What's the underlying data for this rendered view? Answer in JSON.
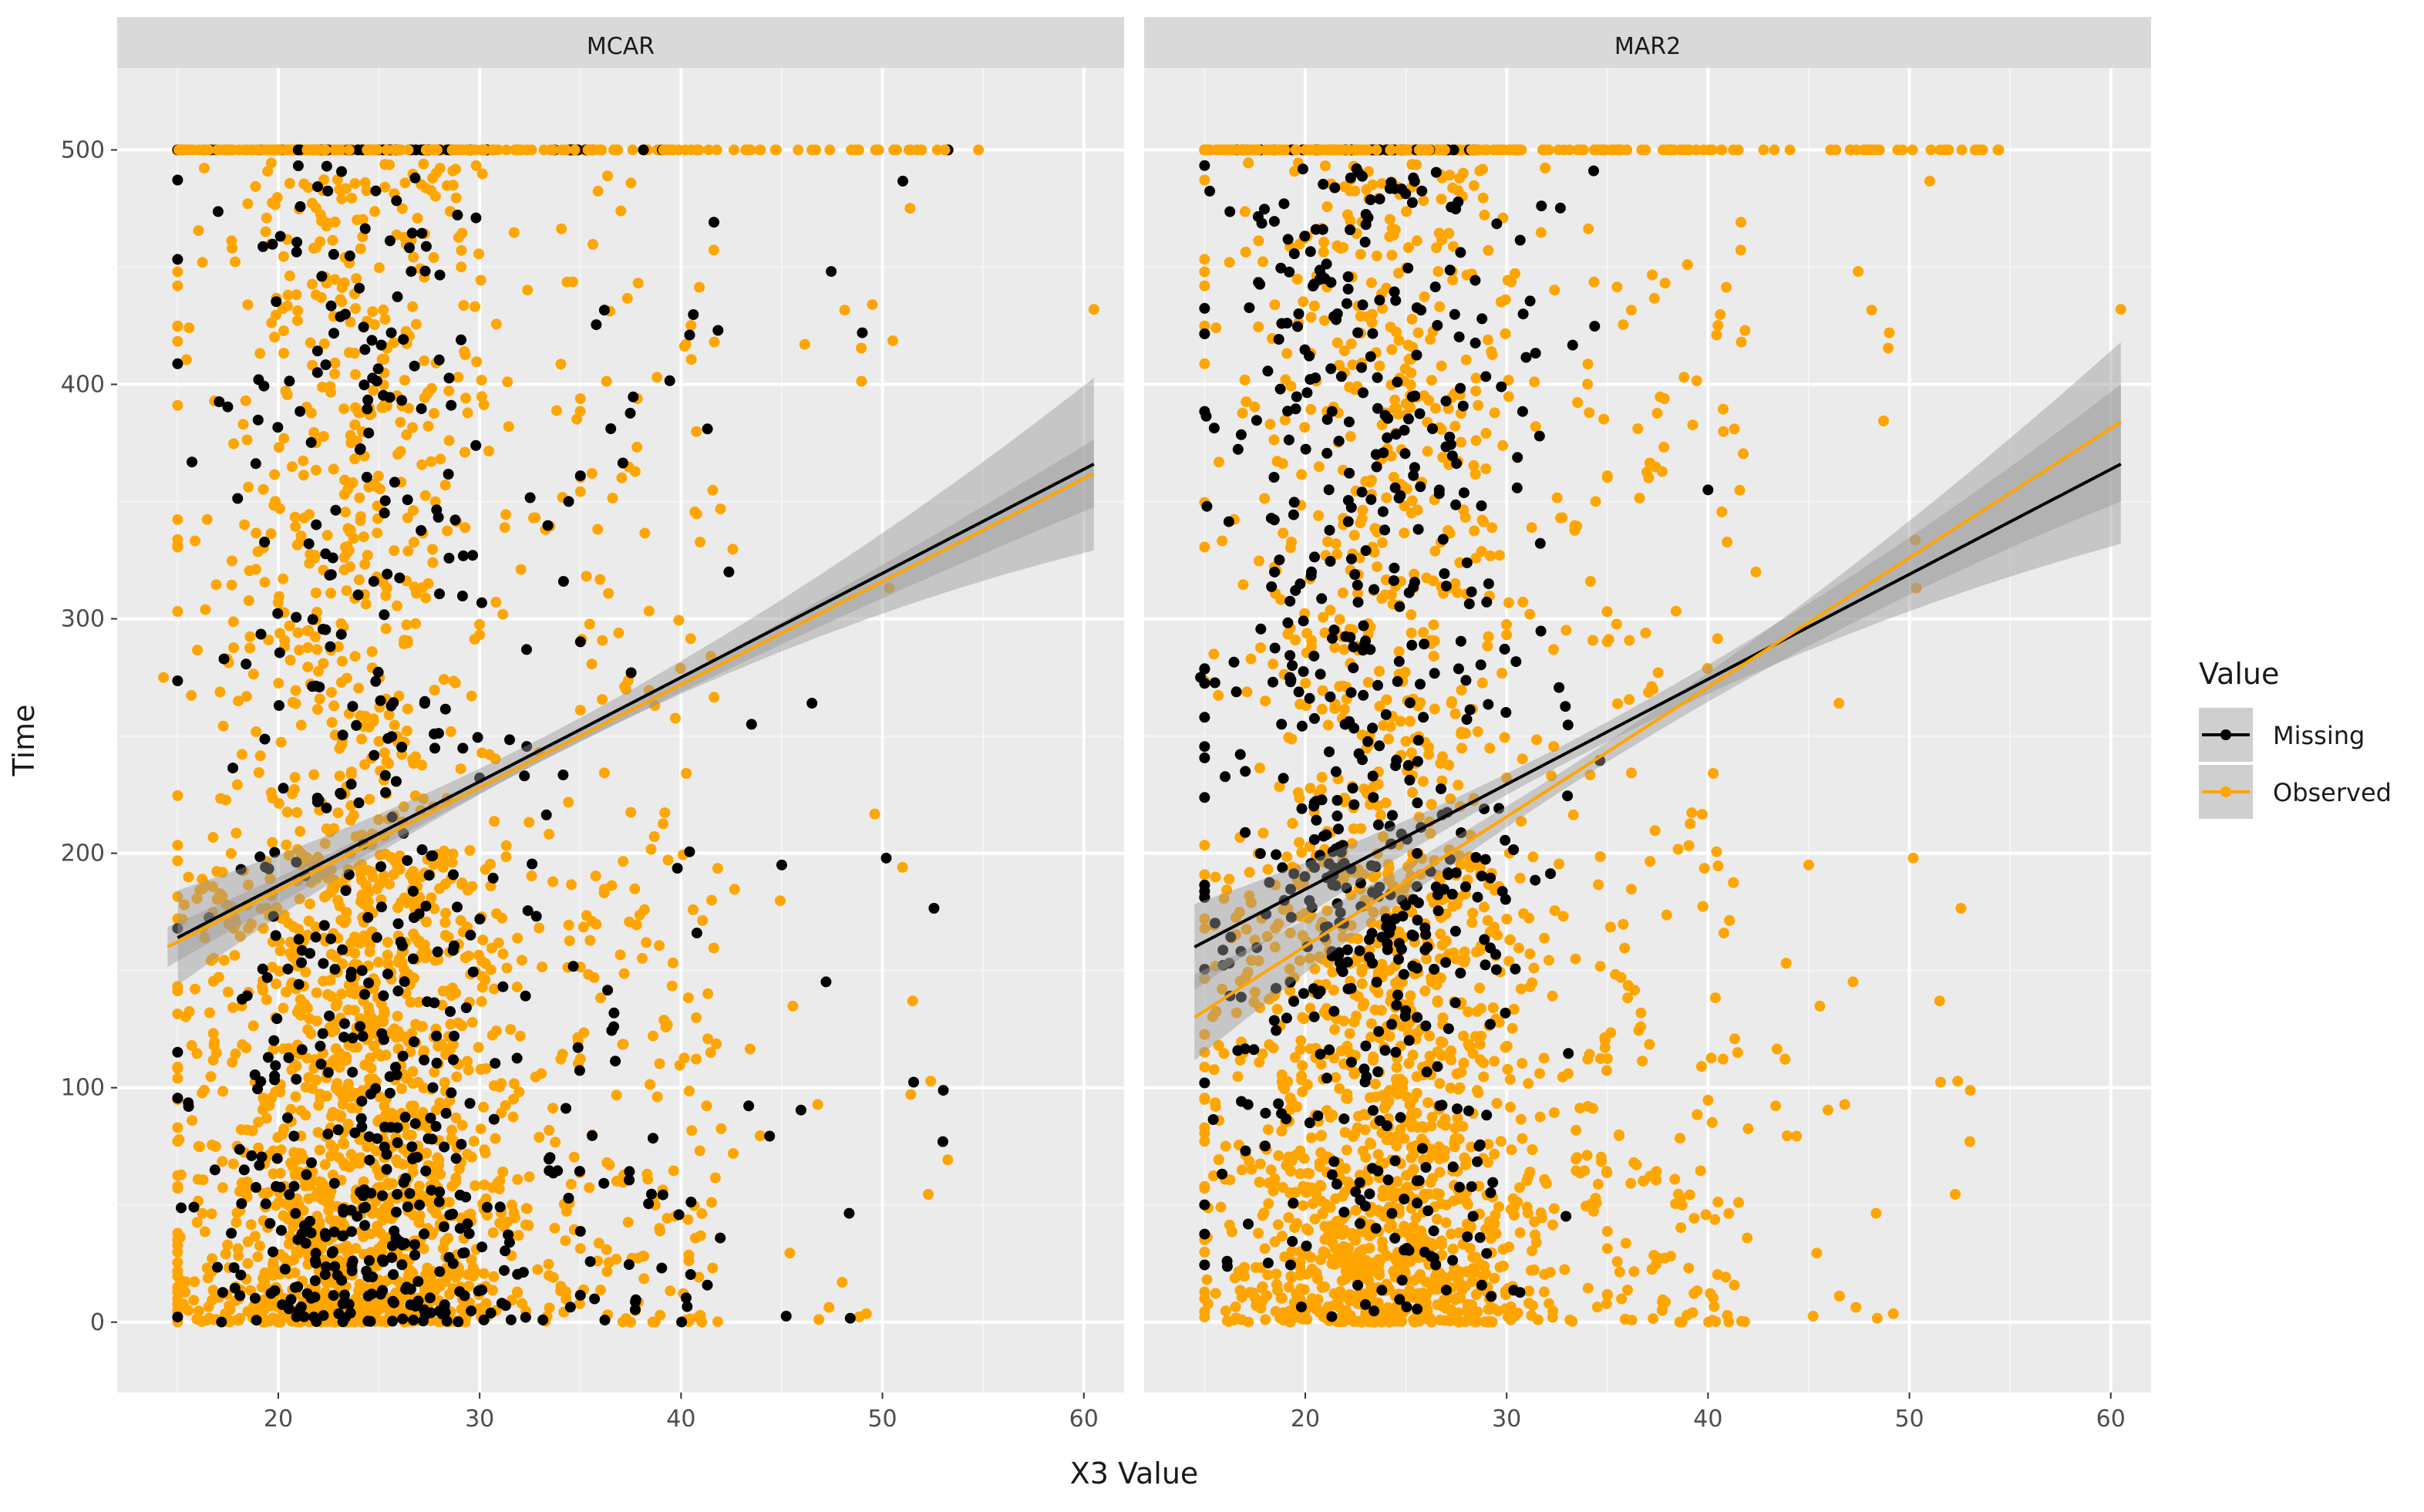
{
  "chart_data": {
    "type": "scatter",
    "subtype": "faceted scatter with linear fits and confidence bands",
    "xlabel": "X3 Value",
    "ylabel": "Time",
    "xlim": [
      12,
      62
    ],
    "ylim": [
      -30,
      535
    ],
    "x_ticks": [
      20,
      30,
      40,
      50,
      60
    ],
    "y_ticks": [
      0,
      100,
      200,
      300,
      400,
      500
    ],
    "grid": true,
    "legend": {
      "title": "Value",
      "position": "right",
      "entries": [
        {
          "label": "Missing",
          "color": "#000000"
        },
        {
          "label": "Observed",
          "color": "#FFA500"
        }
      ]
    },
    "facets": [
      {
        "label": "MCAR",
        "fits": [
          {
            "series": "Missing",
            "x": [
              15,
              60.5
            ],
            "y": [
              164,
              366
            ],
            "band_half_width": [
              12,
              32
            ]
          },
          {
            "series": "Observed",
            "x": [
              14.5,
              60.5
            ],
            "y": [
              160,
              362
            ],
            "band_half_width": [
              6,
              12
            ]
          }
        ],
        "notable_points": [
          {
            "series": "Missing",
            "x": 49,
            "y": 422
          },
          {
            "series": "Missing",
            "x": 53,
            "y": 77
          },
          {
            "series": "Missing",
            "x": 45,
            "y": 195
          },
          {
            "series": "Missing",
            "x": 46.5,
            "y": 264
          },
          {
            "series": "Missing",
            "x": 43.5,
            "y": 255
          },
          {
            "series": "Observed",
            "x": 60.5,
            "y": 432
          },
          {
            "series": "Observed",
            "x": 51.5,
            "y": 137
          },
          {
            "series": "Observed",
            "x": 51,
            "y": 194
          },
          {
            "series": "Observed",
            "x": 48,
            "y": 17
          },
          {
            "series": "Observed",
            "x": 49.5,
            "y": 434
          },
          {
            "series": "Observed",
            "x": 14.3,
            "y": 275
          }
        ]
      },
      {
        "label": "MAR2",
        "fits": [
          {
            "series": "Missing",
            "x": [
              14.5,
              60.5
            ],
            "y": [
              160,
              366
            ],
            "band_half_width": [
              10,
              30
            ]
          },
          {
            "series": "Observed",
            "x": [
              14.5,
              60.5
            ],
            "y": [
              130,
              384
            ],
            "band_half_width": [
              10,
              30
            ]
          }
        ],
        "notable_points": [
          {
            "series": "Missing",
            "x": 40,
            "y": 355
          },
          {
            "series": "Missing",
            "x": 14.8,
            "y": 275
          },
          {
            "series": "Observed",
            "x": 60.5,
            "y": 432
          },
          {
            "series": "Observed",
            "x": 51.5,
            "y": 137
          },
          {
            "series": "Observed",
            "x": 53,
            "y": 77
          },
          {
            "series": "Observed",
            "x": 45,
            "y": 195
          },
          {
            "series": "Observed",
            "x": 46.5,
            "y": 264
          },
          {
            "series": "Observed",
            "x": 49,
            "y": 422
          }
        ]
      }
    ]
  }
}
